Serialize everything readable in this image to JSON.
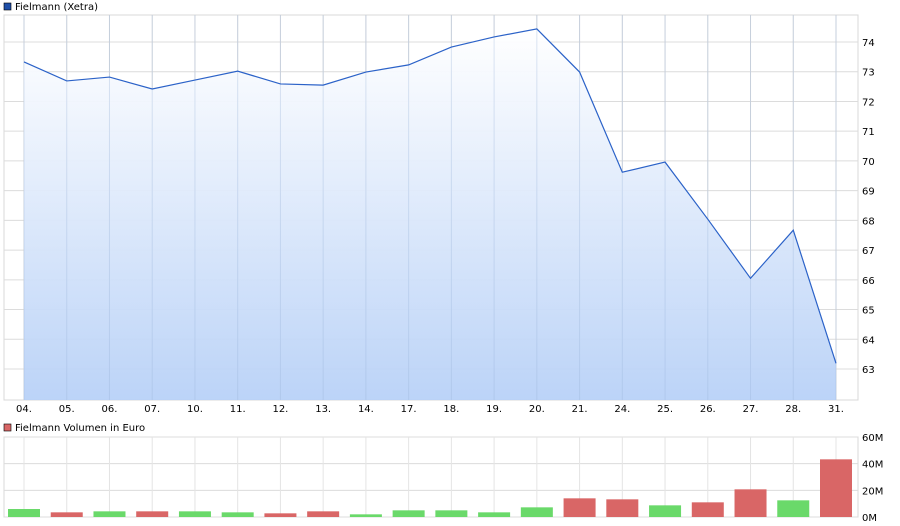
{
  "chart_data": [
    {
      "type": "area",
      "legend": "Fielmann (Xetra)",
      "legend_color": "#1f4fa8",
      "line_color": "#2b62c8",
      "fill_top": "#ffffff",
      "fill_bottom": "#b8d1f7",
      "categories": [
        "04.",
        "05.",
        "06.",
        "07.",
        "10.",
        "11.",
        "12.",
        "13.",
        "14.",
        "17.",
        "18.",
        "19.",
        "20.",
        "21.",
        "24.",
        "25.",
        "26.",
        "27.",
        "28.",
        "31."
      ],
      "values": [
        73.33,
        72.69,
        72.82,
        72.42,
        72.72,
        73.02,
        72.59,
        72.55,
        72.99,
        73.23,
        73.83,
        74.17,
        74.44,
        72.99,
        69.62,
        69.96,
        68.04,
        66.05,
        67.67,
        63.19
      ],
      "yticks": [
        63,
        64,
        65,
        66,
        67,
        68,
        69,
        70,
        71,
        72,
        73,
        74
      ],
      "ylim": [
        62.1,
        74.9
      ],
      "grid": true,
      "y_axis": "right"
    },
    {
      "type": "bar",
      "legend": "Fielmann Volumen in Euro",
      "legend_color": "#d96666",
      "up_color": "#6ad96a",
      "down_color": "#d96666",
      "categories": [
        "04.",
        "05.",
        "06.",
        "07.",
        "10.",
        "11.",
        "12.",
        "13.",
        "14.",
        "17.",
        "18.",
        "19.",
        "20.",
        "21.",
        "24.",
        "25.",
        "26.",
        "27.",
        "28.",
        "31."
      ],
      "values": [
        6,
        3.5,
        4.25,
        4.25,
        4.25,
        3.5,
        2.75,
        4.25,
        2,
        5,
        5,
        3.5,
        7.25,
        14,
        13.25,
        8.75,
        11,
        20.75,
        12.5,
        43.25
      ],
      "unit": "M Euro",
      "direction": [
        "up",
        "down",
        "up",
        "down",
        "up",
        "up",
        "down",
        "down",
        "up",
        "up",
        "up",
        "up",
        "up",
        "down",
        "down",
        "up",
        "down",
        "down",
        "up",
        "down"
      ],
      "yticks": [
        "0M",
        "20M",
        "40M",
        "60M"
      ],
      "ylim": [
        0,
        60
      ],
      "grid": true,
      "y_axis": "right"
    }
  ]
}
